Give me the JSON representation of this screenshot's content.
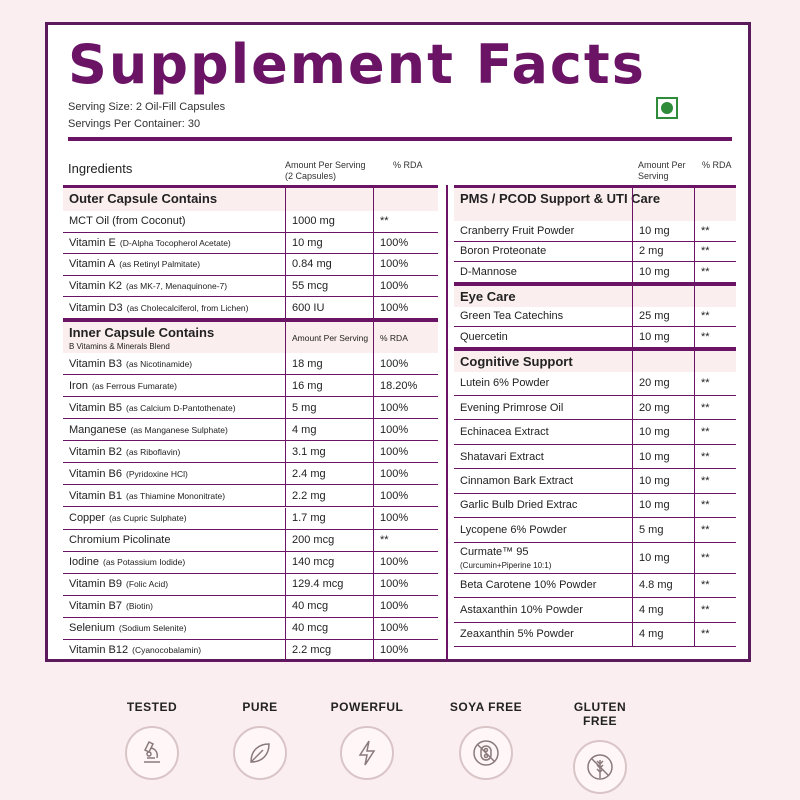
{
  "title": "Supplement Facts",
  "serving_size": "Serving Size: 2 Oil-Fill Capsules",
  "servings_per_container": "Servings Per Container: 30",
  "headers": {
    "ingredients": "Ingredients",
    "amount_left": "Amount Per Serving",
    "amount_left_sub": "(2 Capsules)",
    "rda_left": "% RDA",
    "amount_right": "Amount Per Serving",
    "rda_right": "% RDA"
  },
  "left": {
    "outer_title": "Outer Capsule Contains",
    "outer": [
      {
        "name": "MCT Oil (from Coconut)",
        "note": "",
        "amount": "1000 mg",
        "rda": "**"
      },
      {
        "name": "Vitamin E",
        "note": "(D-Alpha Tocopherol Acetate)",
        "amount": "10 mg",
        "rda": "100%"
      },
      {
        "name": "Vitamin A",
        "note": "(as Retinyl Palmitate)",
        "amount": "0.84 mg",
        "rda": "100%"
      },
      {
        "name": "Vitamin K2",
        "note": "(as MK-7, Menaquinone-7)",
        "amount": "55 mcg",
        "rda": "100%"
      },
      {
        "name": "Vitamin D3",
        "note": "(as Cholecalciferol, from Lichen)",
        "amount": "600 IU",
        "rda": "100%"
      }
    ],
    "inner_title": "Inner Capsule Contains",
    "inner_sub": "B Vitamins & Minerals Blend",
    "inner_amount_hdr": "Amount Per Serving",
    "inner_rda_hdr": "% RDA",
    "inner": [
      {
        "name": "Vitamin B3",
        "note": "(as Nicotinamide)",
        "amount": "18 mg",
        "rda": "100%"
      },
      {
        "name": "Iron",
        "note": "(as Ferrous Fumarate)",
        "amount": "16 mg",
        "rda": "18.20%"
      },
      {
        "name": "Vitamin B5",
        "note": "(as Calcium D-Pantothenate)",
        "amount": "5 mg",
        "rda": "100%"
      },
      {
        "name": "Manganese",
        "note": "(as Manganese Sulphate)",
        "amount": "4 mg",
        "rda": "100%"
      },
      {
        "name": "Vitamin B2",
        "note": "(as Riboflavin)",
        "amount": "3.1 mg",
        "rda": "100%"
      },
      {
        "name": "Vitamin B6",
        "note": "(Pyridoxine HCl)",
        "amount": "2.4 mg",
        "rda": "100%"
      },
      {
        "name": "Vitamin B1",
        "note": "(as Thiamine Mononitrate)",
        "amount": "2.2 mg",
        "rda": "100%"
      },
      {
        "name": "Copper",
        "note": "(as Cupric Sulphate)",
        "amount": "1.7 mg",
        "rda": "100%"
      },
      {
        "name": "Chromium Picolinate",
        "note": "",
        "amount": "200 mcg",
        "rda": "**"
      },
      {
        "name": "Iodine",
        "note": "(as Potassium Iodide)",
        "amount": "140 mcg",
        "rda": "100%"
      },
      {
        "name": "Vitamin B9",
        "note": "(Folic Acid)",
        "amount": "129.4 mcg",
        "rda": "100%"
      },
      {
        "name": "Vitamin B7",
        "note": "(Biotin)",
        "amount": "40 mcg",
        "rda": "100%"
      },
      {
        "name": "Selenium",
        "note": "(Sodium Selenite)",
        "amount": "40 mcg",
        "rda": "100%"
      },
      {
        "name": "Vitamin B12",
        "note": "(Cyanocobalamin)",
        "amount": "2.2 mcg",
        "rda": "100%"
      }
    ]
  },
  "right": {
    "pms_title": "PMS / PCOD Support & UTI Care",
    "pms": [
      {
        "name": "Cranberry Fruit Powder",
        "amount": "10 mg",
        "rda": "**"
      },
      {
        "name": "Boron Proteonate",
        "amount": "2 mg",
        "rda": "**"
      },
      {
        "name": "D-Mannose",
        "amount": "10 mg",
        "rda": "**"
      }
    ],
    "eye_title": "Eye Care",
    "eye": [
      {
        "name": "Green Tea Catechins",
        "amount": "25 mg",
        "rda": "**"
      },
      {
        "name": "Quercetin",
        "amount": "10 mg",
        "rda": "**"
      }
    ],
    "cog_title": "Cognitive Support",
    "cog": [
      {
        "name": "Lutein 6% Powder",
        "amount": "20 mg",
        "rda": "**"
      },
      {
        "name": "Evening Primrose Oil",
        "amount": "20 mg",
        "rda": "**"
      },
      {
        "name": "Echinacea Extract",
        "amount": "10 mg",
        "rda": "**"
      },
      {
        "name": "Shatavari Extract",
        "amount": "10 mg",
        "rda": "**"
      },
      {
        "name": "Cinnamon Bark Extract",
        "amount": "10 mg",
        "rda": "**"
      },
      {
        "name": "Garlic Bulb Dried Extrac",
        "amount": "10 mg",
        "rda": "**"
      },
      {
        "name": "Lycopene 6% Powder",
        "amount": "5 mg",
        "rda": "**"
      },
      {
        "name": "Curmate™ 95",
        "sub": "(Curcumin+Piperine 10:1)",
        "amount": "10 mg",
        "rda": "**"
      },
      {
        "name": "Beta Carotene 10% Powder",
        "amount": "4.8 mg",
        "rda": "**"
      },
      {
        "name": "Astaxanthin 10% Powder",
        "amount": "4 mg",
        "rda": "**"
      },
      {
        "name": "Zeaxanthin 5% Powder",
        "amount": "4 mg",
        "rda": "**"
      }
    ]
  },
  "badges": [
    {
      "label": "TESTED",
      "icon": "microscope-icon"
    },
    {
      "label": "PURE",
      "icon": "leaf-icon"
    },
    {
      "label": "POWERFUL",
      "icon": "lightning-icon"
    },
    {
      "label": "SOYA FREE",
      "icon": "no-soy-icon"
    },
    {
      "label": "GLUTEN FREE",
      "icon": "no-wheat-icon"
    }
  ],
  "colors": {
    "brand": "#6b1466",
    "background": "#fbeef0",
    "veg": "#2e8b3a"
  }
}
